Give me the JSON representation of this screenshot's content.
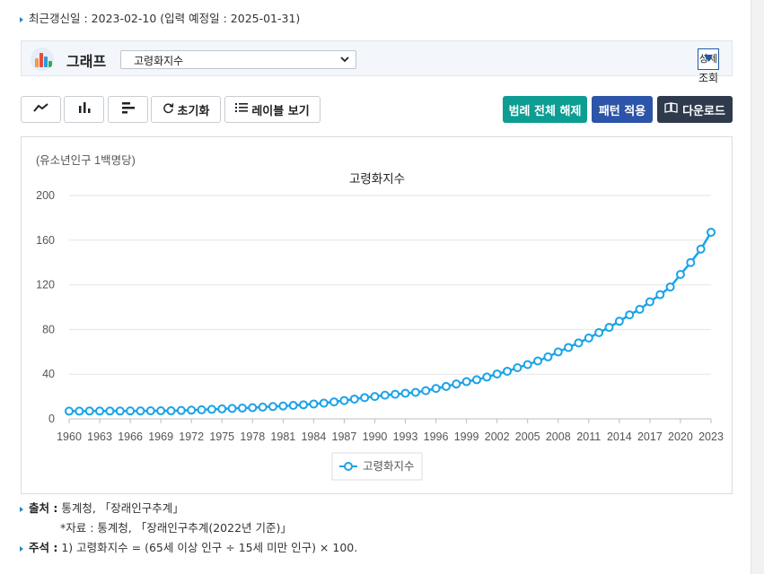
{
  "meta": {
    "updated_text": "최근갱신일 : 2023-02-10 (입력 예정일 : 2025-01-31)"
  },
  "graph_header": {
    "title": "그래프",
    "select_value": "고령화지수",
    "detail_button_label": "상세",
    "detail_sub_label": "조회"
  },
  "toolbar": {
    "reset_label": "초기화",
    "label_view_label": "레이블 보기",
    "legend_clear_label": "범례 전체 해제",
    "pattern_apply_label": "패턴 적용",
    "download_label": "다운로드"
  },
  "colors": {
    "series": "#1aa3e8",
    "teal_button": "#0d9d92",
    "blue_button": "#2c54a8",
    "dark_button": "#2f3a4d"
  },
  "chart_data": {
    "type": "line",
    "title": "고령화지수",
    "unit_label": "(유소년인구 1백명당)",
    "ylim": [
      0,
      200
    ],
    "yticks": [
      0,
      40,
      80,
      120,
      160,
      200
    ],
    "xlim": [
      1960,
      2023
    ],
    "xticks": [
      1960,
      1963,
      1966,
      1969,
      1972,
      1975,
      1978,
      1981,
      1984,
      1987,
      1990,
      1993,
      1996,
      1999,
      2002,
      2005,
      2008,
      2011,
      2014,
      2017,
      2020,
      2023
    ],
    "grid": true,
    "legend_position": "bottom-center",
    "series": [
      {
        "name": "고령화지수",
        "x": [
          1960,
          1961,
          1962,
          1963,
          1964,
          1965,
          1966,
          1967,
          1968,
          1969,
          1970,
          1971,
          1972,
          1973,
          1974,
          1975,
          1976,
          1977,
          1978,
          1979,
          1980,
          1981,
          1982,
          1983,
          1984,
          1985,
          1986,
          1987,
          1988,
          1989,
          1990,
          1991,
          1992,
          1993,
          1994,
          1995,
          1996,
          1997,
          1998,
          1999,
          2000,
          2001,
          2002,
          2003,
          2004,
          2005,
          2006,
          2007,
          2008,
          2009,
          2010,
          2011,
          2012,
          2013,
          2014,
          2015,
          2016,
          2017,
          2018,
          2019,
          2020,
          2021,
          2022,
          2023
        ],
        "values": [
          6.9,
          6.9,
          7.0,
          7.0,
          7.0,
          7.0,
          7.1,
          7.1,
          7.2,
          7.2,
          7.2,
          7.5,
          7.8,
          8.1,
          8.5,
          8.9,
          9.3,
          9.6,
          10.0,
          10.5,
          11.0,
          11.5,
          12.0,
          12.6,
          13.3,
          14.1,
          15.2,
          16.4,
          17.7,
          19.0,
          20.0,
          21.2,
          22.0,
          22.9,
          23.7,
          25.2,
          27.2,
          29.0,
          31.2,
          33.3,
          35.0,
          37.4,
          40.2,
          42.6,
          45.8,
          48.6,
          51.8,
          55.5,
          59.9,
          63.9,
          68.0,
          72.4,
          77.2,
          81.9,
          87.4,
          93.1,
          98.1,
          104.8,
          111.2,
          118.1,
          129.3,
          140.0,
          152.0,
          167.1
        ]
      }
    ]
  },
  "footer": {
    "source_label": "출처 :",
    "source_text": "통계청, 「장래인구추계」",
    "source_sub": "*자료 : 통계청, 「장래인구추계(2022년 기준)」",
    "note_label": "주석 :",
    "note_text": "1) 고령화지수 = (65세 이상 인구 ÷ 15세 미만 인구) × 100."
  }
}
